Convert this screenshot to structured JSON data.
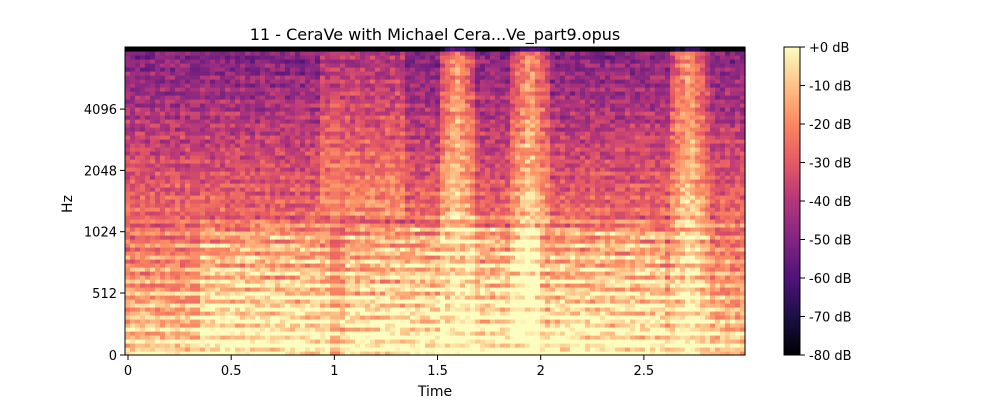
{
  "chart_data": {
    "type": "heatmap",
    "title": "11 - CeraVe with Michael Cera...Ve_part9.opus",
    "xlabel": "Time",
    "ylabel": "Hz",
    "x_ticks": [
      "0",
      "0.5",
      "1",
      "1.5",
      "2",
      "2.5"
    ],
    "x_tick_values": [
      0,
      0.5,
      1,
      1.5,
      2,
      2.5
    ],
    "xlim": [
      0,
      2.99
    ],
    "y_ticks": [
      "0",
      "512",
      "1024",
      "2048",
      "4096"
    ],
    "y_tick_values": [
      0,
      512,
      1024,
      2048,
      4096
    ],
    "y_scale": "log (symlog-style spectrogram axis)",
    "colorbar": {
      "ticks": [
        "+0 dB",
        "-10 dB",
        "-20 dB",
        "-30 dB",
        "-40 dB",
        "-50 dB",
        "-60 dB",
        "-70 dB",
        "-80 dB"
      ],
      "tick_values": [
        0,
        -10,
        -20,
        -30,
        -40,
        -50,
        -60,
        -70,
        -80
      ],
      "range": [
        -80,
        0
      ],
      "colormap": "magma"
    },
    "high_energy_bursts_seconds": [
      1.6,
      1.95,
      2.72
    ],
    "grid": false
  },
  "colors": {
    "magma_stops": [
      "#000004",
      "#1c1044",
      "#4f127b",
      "#812581",
      "#b5367a",
      "#e55964",
      "#fb8761",
      "#fec287",
      "#fcfdbf"
    ]
  }
}
